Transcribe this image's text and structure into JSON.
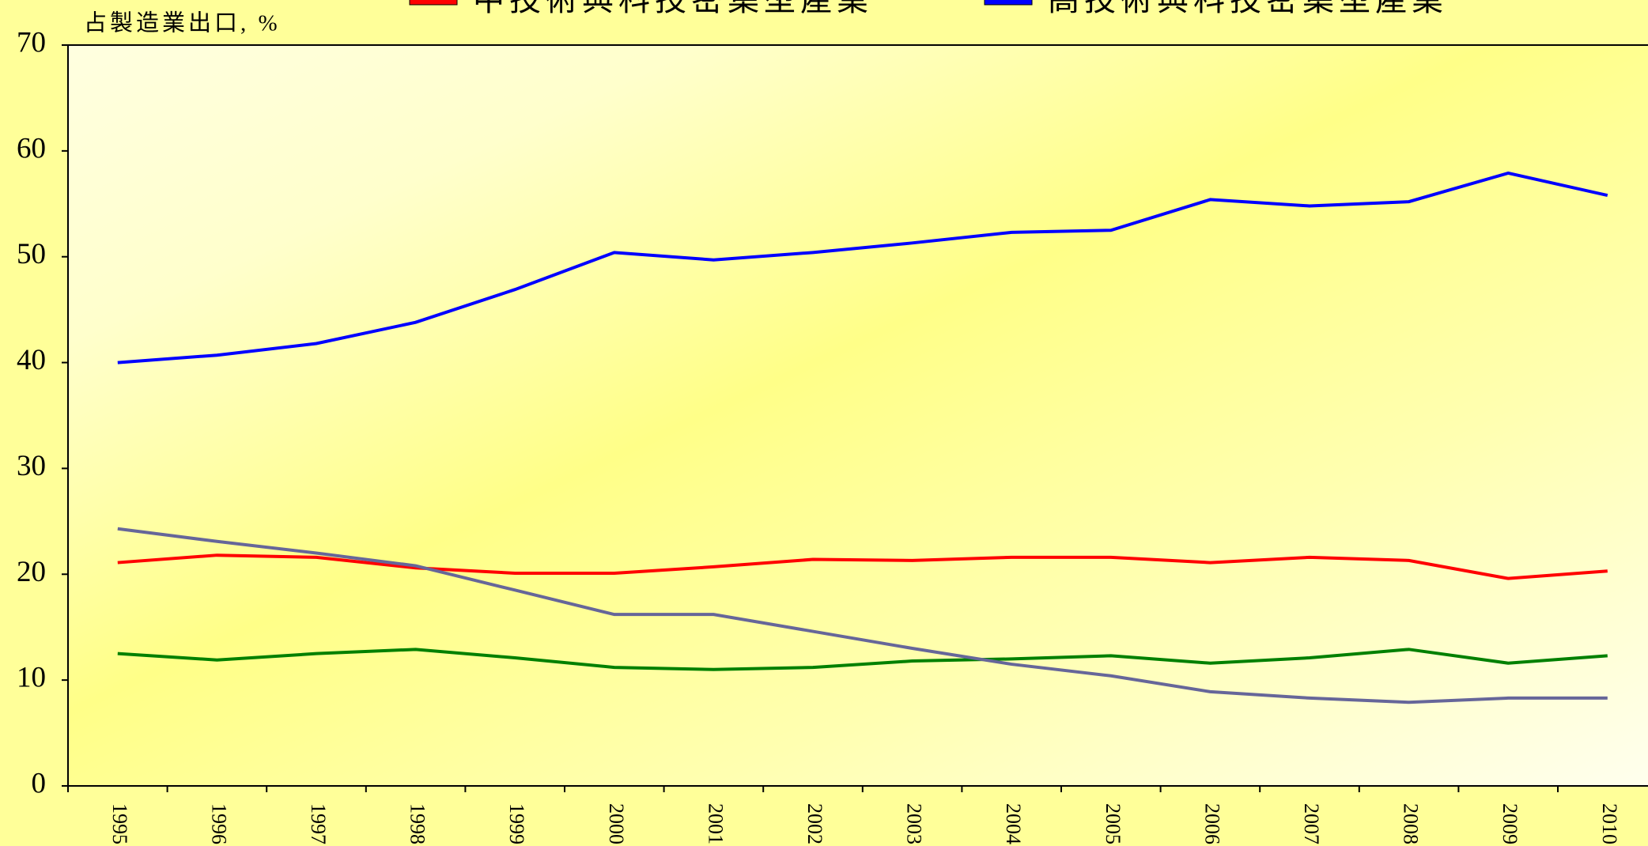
{
  "chart_data": {
    "type": "line",
    "y_label": "占製造業出口, %",
    "categories": [
      "1995",
      "1996",
      "1997",
      "1998",
      "1999",
      "2000",
      "2001",
      "2002",
      "2003",
      "2004",
      "2005",
      "2006",
      "2007",
      "2008",
      "2009",
      "2010"
    ],
    "series": [
      {
        "name": "中技術與科技密集型產業",
        "color": "#ff0000",
        "values": [
          21.1,
          21.8,
          21.6,
          20.6,
          20.1,
          20.1,
          20.7,
          21.4,
          21.3,
          21.6,
          21.6,
          21.1,
          21.6,
          21.3,
          19.6,
          20.3
        ]
      },
      {
        "name": "高技術與科技密集型產業",
        "color": "#0000ff",
        "values": [
          40,
          40.7,
          41.8,
          43.8,
          46.9,
          50.4,
          49.7,
          50.4,
          51.3,
          52.3,
          52.5,
          55.4,
          54.8,
          55.2,
          57.9,
          55.8
        ]
      },
      {
        "color": "#008000",
        "values": [
          12.5,
          11.9,
          12.5,
          12.9,
          12.1,
          11.2,
          11.0,
          11.2,
          11.8,
          12.0,
          12.3,
          11.6,
          12.1,
          12.9,
          11.6,
          12.3
        ]
      },
      {
        "color": "#666699",
        "values": [
          24.3,
          23.1,
          22.0,
          20.8,
          18.5,
          16.2,
          16.2,
          14.6,
          13.0,
          11.5,
          10.4,
          8.9,
          8.3,
          7.9,
          8.3,
          8.3
        ]
      }
    ],
    "ylim": [
      0,
      70
    ],
    "yticks": [
      0,
      10,
      20,
      30,
      40,
      50,
      60,
      70
    ]
  }
}
